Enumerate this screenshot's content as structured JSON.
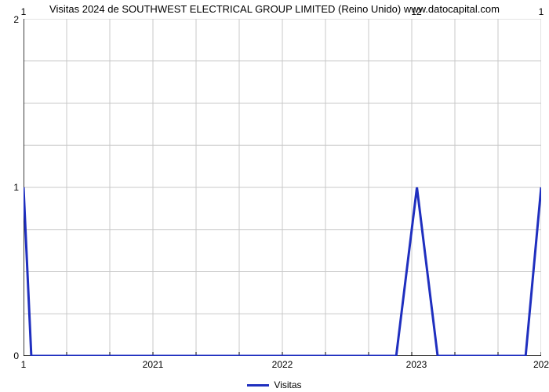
{
  "title": "Visitas 2024 de SOUTHWEST ELECTRICAL GROUP LIMITED (Reino Unido) www.datocapital.com",
  "legend": {
    "label": "Visitas"
  },
  "chart": {
    "type": "line",
    "background_color": "#ffffff",
    "grid_color": "#c8c8c8",
    "axis_color": "#000000",
    "line_color": "#1f2fbf",
    "line_width": 3,
    "xlim": [
      0,
      100
    ],
    "ylim": [
      0,
      2
    ],
    "y_ticks": [
      0,
      1,
      2
    ],
    "x_grid_count": 13,
    "top_ticks": [
      {
        "pos": 0,
        "label": "1"
      },
      {
        "pos": 76,
        "label": "12"
      },
      {
        "pos": 100,
        "label": "1"
      }
    ],
    "bottom_ticks": [
      {
        "pos": 0,
        "label": "1"
      },
      {
        "pos": 25,
        "label": "2021"
      },
      {
        "pos": 50,
        "label": "2022"
      },
      {
        "pos": 76,
        "label": "2023"
      },
      {
        "pos": 100,
        "label": "202"
      }
    ],
    "points": [
      [
        0,
        1
      ],
      [
        1.5,
        0
      ],
      [
        72,
        0
      ],
      [
        76,
        1
      ],
      [
        80,
        0
      ],
      [
        97,
        0
      ],
      [
        100,
        1
      ]
    ]
  },
  "colors": {
    "title_color": "#000000",
    "tick_color": "#000000"
  },
  "font": {
    "title_fontsize": 13,
    "tick_fontsize": 12
  }
}
